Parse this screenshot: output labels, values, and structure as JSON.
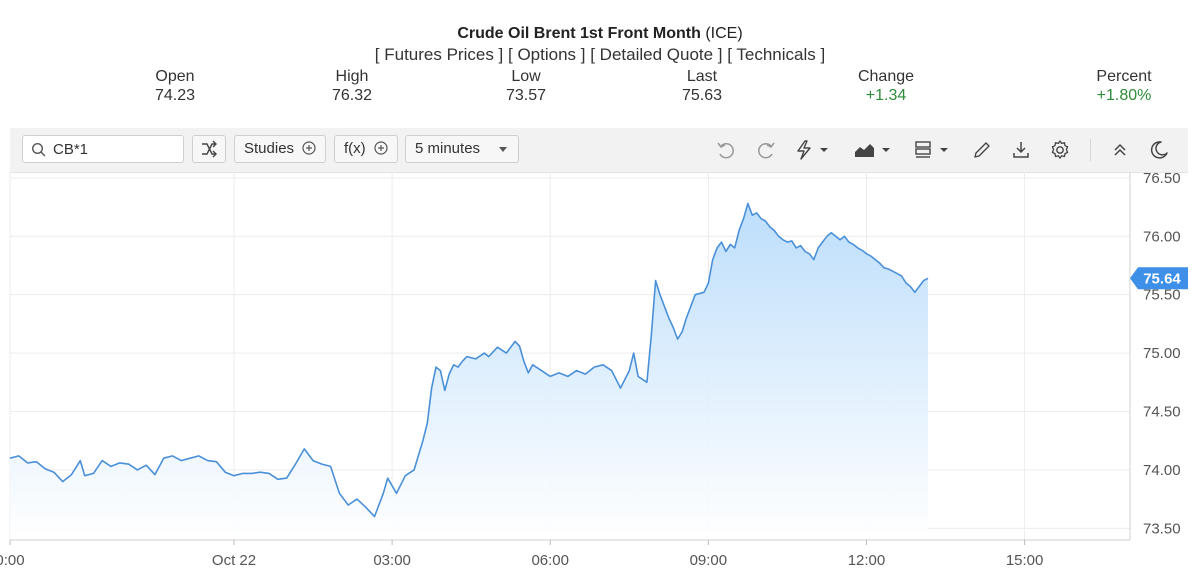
{
  "header": {
    "title": "Crude Oil Brent 1st Front Month",
    "exchange": "(ICE)",
    "links": [
      "Futures Prices",
      "Options",
      "Detailed Quote",
      "Technicals"
    ],
    "quote": [
      {
        "label": "Open",
        "value": "74.23",
        "up": false
      },
      {
        "label": "High",
        "value": "76.32",
        "up": false
      },
      {
        "label": "Low",
        "value": "73.57",
        "up": false
      },
      {
        "label": "Last",
        "value": "75.63",
        "up": false
      },
      {
        "label": "Change",
        "value": "+1.34",
        "up": true
      },
      {
        "label": "Percent",
        "value": "+1.80%",
        "up": true
      }
    ]
  },
  "toolbar": {
    "search_value": "CB*1",
    "studies_label": "Studies",
    "fx_label": "f(x)",
    "interval_label": "5 minutes",
    "icons": [
      "search-icon",
      "shuffle-icon",
      "plus-circle-icon",
      "undo-icon",
      "redo-icon",
      "flash-icon",
      "area-chart-icon",
      "layout-icon",
      "pencil-icon",
      "download-icon",
      "gear-icon",
      "collapse-icon",
      "moon-icon"
    ]
  },
  "colors": {
    "line": "#4a90d9",
    "fill_top": "#b9dcfb",
    "fill_bottom": "#ffffff",
    "price_badge": "#3d8fe8",
    "up": "#2e8b3a"
  },
  "chart_data": {
    "type": "area",
    "title": "",
    "xlabel": "",
    "ylabel": "",
    "ylim": [
      73.4,
      76.55
    ],
    "yticks": [
      "73.50",
      "74.00",
      "74.50",
      "75.00",
      "75.50",
      "76.00",
      "76.50"
    ],
    "xticks": [
      {
        "label": "0:00",
        "t": 0
      },
      {
        "label": "Oct 22",
        "t": 51
      },
      {
        "label": "03:00",
        "t": 87
      },
      {
        "label": "06:00",
        "t": 123
      },
      {
        "label": "09:00",
        "t": 159
      },
      {
        "label": "12:00",
        "t": 195
      },
      {
        "label": "15:00",
        "t": 231
      }
    ],
    "last_price": "75.64",
    "series": [
      {
        "points": [
          [
            0,
            74.1
          ],
          [
            2,
            74.12
          ],
          [
            4,
            74.06
          ],
          [
            6,
            74.07
          ],
          [
            8,
            74.01
          ],
          [
            10,
            73.98
          ],
          [
            12,
            73.9
          ],
          [
            14,
            73.96
          ],
          [
            16,
            74.08
          ],
          [
            17,
            73.95
          ],
          [
            19,
            73.97
          ],
          [
            21,
            74.08
          ],
          [
            23,
            74.03
          ],
          [
            25,
            74.06
          ],
          [
            27,
            74.05
          ],
          [
            29,
            74.0
          ],
          [
            31,
            74.04
          ],
          [
            33,
            73.96
          ],
          [
            35,
            74.1
          ],
          [
            37,
            74.12
          ],
          [
            39,
            74.08
          ],
          [
            41,
            74.1
          ],
          [
            43,
            74.12
          ],
          [
            45,
            74.08
          ],
          [
            47,
            74.07
          ],
          [
            49,
            73.98
          ],
          [
            51,
            73.95
          ],
          [
            53,
            73.97
          ],
          [
            55,
            73.97
          ],
          [
            57,
            73.98
          ],
          [
            59,
            73.97
          ],
          [
            61,
            73.92
          ],
          [
            63,
            73.93
          ],
          [
            65,
            74.05
          ],
          [
            67,
            74.18
          ],
          [
            69,
            74.08
          ],
          [
            71,
            74.05
          ],
          [
            73,
            74.03
          ],
          [
            75,
            73.8
          ],
          [
            77,
            73.7
          ],
          [
            79,
            73.75
          ],
          [
            81,
            73.68
          ],
          [
            83,
            73.6
          ],
          [
            85,
            73.8
          ],
          [
            86,
            73.93
          ],
          [
            88,
            73.8
          ],
          [
            90,
            73.95
          ],
          [
            92,
            74.0
          ],
          [
            94,
            74.25
          ],
          [
            95,
            74.4
          ],
          [
            96,
            74.7
          ],
          [
            97,
            74.88
          ],
          [
            98,
            74.85
          ],
          [
            99,
            74.68
          ],
          [
            100,
            74.82
          ],
          [
            101,
            74.9
          ],
          [
            102,
            74.88
          ],
          [
            103,
            74.93
          ],
          [
            104,
            74.97
          ],
          [
            106,
            74.95
          ],
          [
            108,
            75.0
          ],
          [
            109,
            74.97
          ],
          [
            111,
            75.05
          ],
          [
            113,
            75.0
          ],
          [
            115,
            75.1
          ],
          [
            116,
            75.06
          ],
          [
            117,
            74.93
          ],
          [
            118,
            74.83
          ],
          [
            119,
            74.9
          ],
          [
            121,
            74.85
          ],
          [
            123,
            74.8
          ],
          [
            125,
            74.83
          ],
          [
            127,
            74.8
          ],
          [
            129,
            74.85
          ],
          [
            131,
            74.82
          ],
          [
            133,
            74.88
          ],
          [
            135,
            74.9
          ],
          [
            137,
            74.85
          ],
          [
            139,
            74.7
          ],
          [
            141,
            74.85
          ],
          [
            142,
            75.0
          ],
          [
            143,
            74.8
          ],
          [
            145,
            74.75
          ],
          [
            146,
            75.15
          ],
          [
            147,
            75.62
          ],
          [
            148,
            75.5
          ],
          [
            149,
            75.4
          ],
          [
            150,
            75.3
          ],
          [
            151,
            75.22
          ],
          [
            152,
            75.12
          ],
          [
            153,
            75.18
          ],
          [
            154,
            75.3
          ],
          [
            155,
            75.4
          ],
          [
            156,
            75.5
          ],
          [
            158,
            75.52
          ],
          [
            159,
            75.6
          ],
          [
            160,
            75.8
          ],
          [
            161,
            75.9
          ],
          [
            162,
            75.95
          ],
          [
            163,
            75.87
          ],
          [
            164,
            75.93
          ],
          [
            165,
            75.9
          ],
          [
            166,
            76.05
          ],
          [
            167,
            76.15
          ],
          [
            168,
            76.28
          ],
          [
            169,
            76.18
          ],
          [
            170,
            76.2
          ],
          [
            171,
            76.15
          ],
          [
            172,
            76.13
          ],
          [
            173,
            76.08
          ],
          [
            174,
            76.05
          ],
          [
            175,
            76.0
          ],
          [
            176,
            75.97
          ],
          [
            177,
            75.95
          ],
          [
            178,
            75.96
          ],
          [
            179,
            75.9
          ],
          [
            180,
            75.92
          ],
          [
            181,
            75.87
          ],
          [
            182,
            75.85
          ],
          [
            183,
            75.8
          ],
          [
            184,
            75.9
          ],
          [
            185,
            75.95
          ],
          [
            186,
            76.0
          ],
          [
            187,
            76.03
          ],
          [
            188,
            76.0
          ],
          [
            189,
            75.97
          ],
          [
            190,
            76.0
          ],
          [
            191,
            75.95
          ],
          [
            192,
            75.93
          ],
          [
            193,
            75.9
          ],
          [
            194,
            75.88
          ],
          [
            195,
            75.85
          ],
          [
            196,
            75.83
          ],
          [
            197,
            75.8
          ],
          [
            198,
            75.77
          ],
          [
            199,
            75.73
          ],
          [
            200,
            75.72
          ],
          [
            201,
            75.7
          ],
          [
            202,
            75.68
          ],
          [
            203,
            75.66
          ],
          [
            204,
            75.6
          ],
          [
            205,
            75.57
          ],
          [
            206,
            75.52
          ],
          [
            207,
            75.57
          ],
          [
            208,
            75.62
          ],
          [
            209,
            75.64
          ]
        ]
      }
    ]
  }
}
